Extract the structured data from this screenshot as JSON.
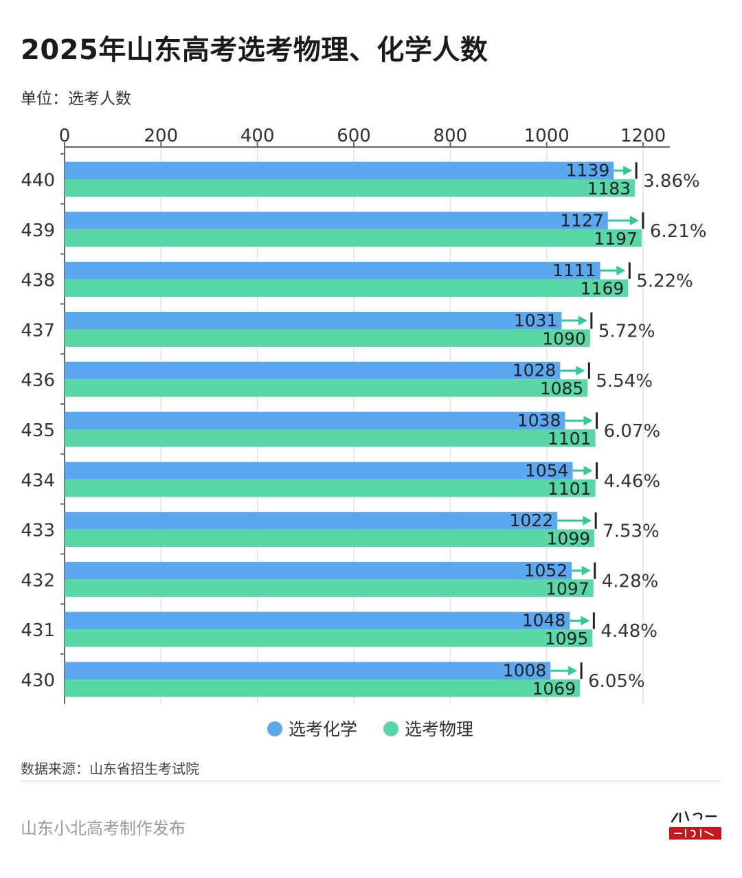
{
  "title": "2025年山东高考选考物理、化学人数",
  "unit_label": "单位：选考人数",
  "source": "数据来源：山东省招生考试院",
  "footer": "山东小北高考制作发布",
  "logo_text": "山东小北高考",
  "colors": {
    "chem": "#5ba8f0",
    "phys": "#5ad7a6",
    "arrow": "#2fc99a",
    "axis": "#666666"
  },
  "chart_data": {
    "type": "bar",
    "orientation": "horizontal",
    "categories": [
      "440",
      "439",
      "438",
      "437",
      "436",
      "435",
      "434",
      "433",
      "432",
      "431",
      "430"
    ],
    "series": [
      {
        "name": "选考化学",
        "values": [
          1139,
          1127,
          1111,
          1031,
          1028,
          1038,
          1054,
          1022,
          1052,
          1048,
          1008
        ]
      },
      {
        "name": "选考物理",
        "values": [
          1183,
          1197,
          1169,
          1090,
          1085,
          1101,
          1101,
          1099,
          1097,
          1095,
          1069
        ]
      }
    ],
    "annotations": [
      "3.86%",
      "6.21%",
      "5.22%",
      "5.72%",
      "5.54%",
      "6.07%",
      "4.46%",
      "7.53%",
      "4.28%",
      "4.48%",
      "6.05%"
    ],
    "xlim": [
      0,
      1200
    ],
    "xticks": [
      0,
      200,
      400,
      600,
      800,
      1000,
      1200
    ],
    "x_axis_position": "top",
    "grid": true,
    "legend": "bottom"
  }
}
